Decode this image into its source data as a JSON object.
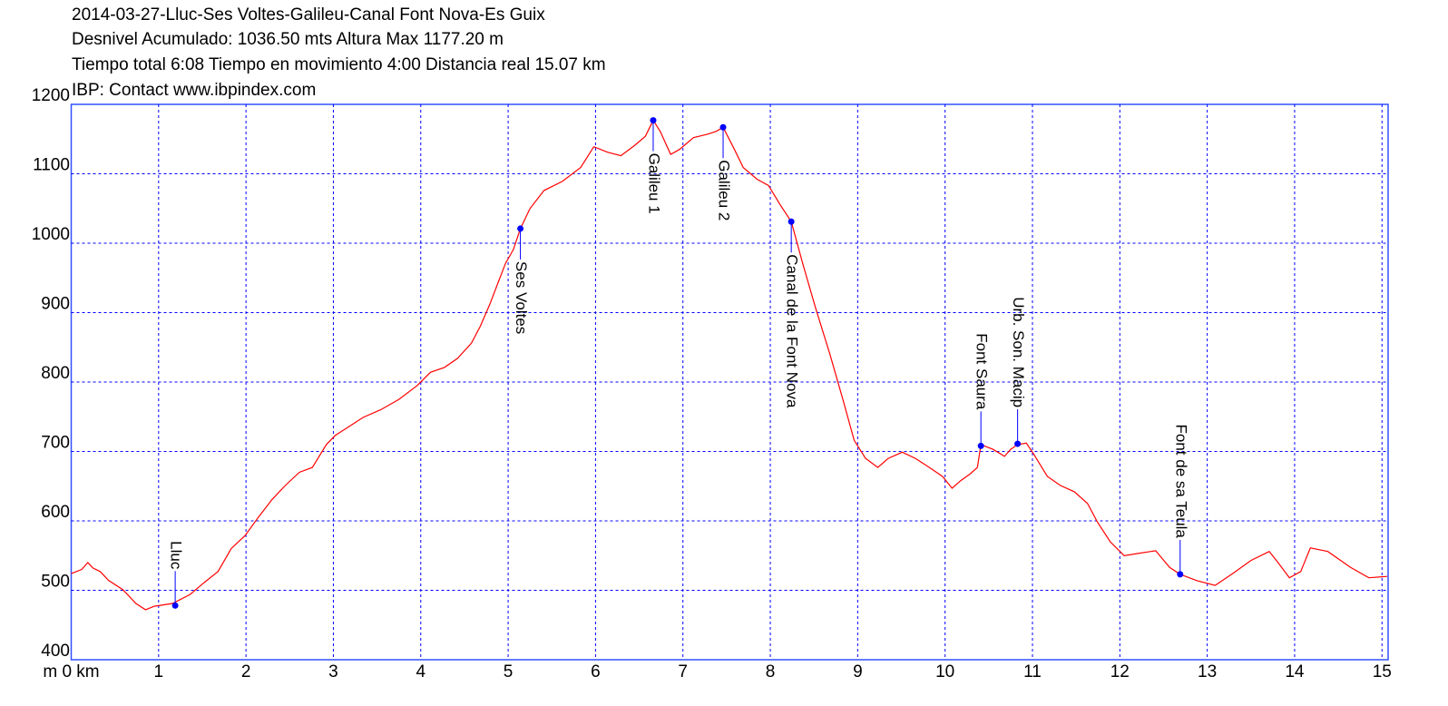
{
  "chart_data": {
    "type": "line",
    "title_lines": [
      "2014-03-27-Lluc-Ses Voltes-Galileu-Canal Font Nova-Es Guix",
      "Desnivel Acumulado: 1036.50 mts  Altura Max 1177.20 m",
      "Tiempo total 6:08 Tiempo en movimiento 4:00 Distancia real 15.07 km",
      "IBP:  Contact www.ibpindex.com"
    ],
    "x": [
      0.0,
      0.12,
      0.19,
      0.25,
      0.33,
      0.43,
      0.59,
      0.74,
      0.85,
      0.95,
      1.16,
      1.36,
      1.52,
      1.68,
      1.83,
      1.99,
      2.14,
      2.3,
      2.45,
      2.61,
      2.76,
      2.92,
      3.02,
      3.18,
      3.34,
      3.54,
      3.75,
      3.96,
      4.11,
      4.27,
      4.42,
      4.58,
      4.68,
      4.79,
      4.89,
      4.97,
      5.06,
      5.14,
      5.25,
      5.41,
      5.62,
      5.83,
      5.98,
      6.14,
      6.29,
      6.45,
      6.57,
      6.66,
      6.74,
      6.86,
      6.96,
      7.12,
      7.28,
      7.38,
      7.46,
      7.59,
      7.69,
      7.85,
      7.98,
      8.11,
      8.24,
      8.37,
      8.52,
      8.68,
      8.83,
      8.96,
      9.09,
      9.23,
      9.35,
      9.51,
      9.66,
      9.82,
      9.97,
      10.08,
      10.18,
      10.29,
      10.37,
      10.41,
      10.55,
      10.68,
      10.75,
      10.83,
      10.93,
      11.01,
      11.17,
      11.32,
      11.48,
      11.63,
      11.74,
      11.89,
      12.05,
      12.2,
      12.41,
      12.57,
      12.69,
      12.88,
      13.09,
      13.29,
      13.5,
      13.71,
      13.81,
      13.94,
      14.07,
      14.18,
      14.38,
      14.64,
      14.85,
      15.06
    ],
    "values": [
      524,
      530,
      540,
      532,
      527,
      514,
      501,
      481,
      472,
      477,
      481,
      494,
      511,
      527,
      560,
      579,
      605,
      631,
      651,
      670,
      677,
      710,
      723,
      736,
      749,
      760,
      775,
      795,
      814,
      821,
      834,
      856,
      880,
      912,
      945,
      971,
      991,
      1021,
      1050,
      1076,
      1089,
      1109,
      1139,
      1131,
      1126,
      1141,
      1154,
      1177,
      1161,
      1128,
      1135,
      1152,
      1157,
      1161,
      1167,
      1135,
      1109,
      1092,
      1083,
      1056,
      1031,
      971,
      906,
      841,
      775,
      716,
      690,
      677,
      690,
      699,
      690,
      677,
      664,
      647,
      658,
      668,
      677,
      710,
      703,
      693,
      703,
      710,
      712,
      697,
      664,
      651,
      642,
      625,
      599,
      570,
      550,
      553,
      557,
      533,
      523,
      514,
      507,
      524,
      543,
      556,
      540,
      518,
      527,
      561,
      556,
      533,
      518,
      520
    ],
    "color": "#ff0000",
    "annotations": [
      {
        "label": "Lluc",
        "x": 1.19,
        "y": 478,
        "placement": "above"
      },
      {
        "label": "Ses Voltes",
        "x": 5.14,
        "y": 1021,
        "placement": "below"
      },
      {
        "label": "Galileu 1",
        "x": 6.66,
        "y": 1177,
        "placement": "below"
      },
      {
        "label": "Galileu 2",
        "x": 7.46,
        "y": 1167,
        "placement": "below"
      },
      {
        "label": "Canal de la Font Nova",
        "x": 8.24,
        "y": 1031,
        "placement": "below"
      },
      {
        "label": "Font Saura",
        "x": 10.41,
        "y": 708,
        "placement": "above"
      },
      {
        "label": "Urb. Son. Macip",
        "x": 10.83,
        "y": 711,
        "placement": "above"
      },
      {
        "label": "Font de sa Teula",
        "x": 12.69,
        "y": 523,
        "placement": "above"
      }
    ],
    "marker_color": "#0000ff",
    "xlim": [
      0,
      15.07
    ],
    "ylim": [
      400,
      1200
    ],
    "xticks": [
      {
        "value": 0,
        "label": "m 0 km"
      },
      1,
      2,
      3,
      4,
      5,
      6,
      7,
      8,
      9,
      10,
      11,
      12,
      13,
      14,
      15
    ],
    "yticks": [
      400,
      500,
      600,
      700,
      800,
      900,
      1000,
      1100,
      1200
    ],
    "grid": true
  }
}
